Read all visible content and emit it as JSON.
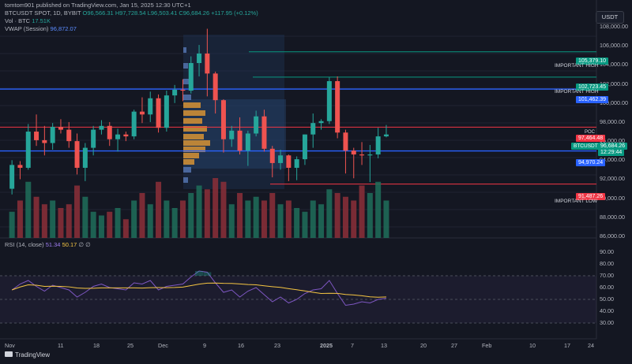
{
  "header": {
    "publisher": "tomtom901 published on TradingView.com, Jan 15, 2025 12:30 UTC+1",
    "symbol_line": "BTCUSDT SPOT, 1D, BYBIT",
    "open": "O96,566.31",
    "high": "H97,728.54",
    "low": "L96,503.41",
    "close": "C96,684.26",
    "change": "+117.95 (+0.12%)",
    "vol_label": "Vol · BTC",
    "vol_value": "17.51K",
    "vwap_label": "VWAP (Session)",
    "vwap_value": "96,872.07"
  },
  "currency_button": "USDT",
  "price_axis": [
    "108,000.00",
    "106,000.00",
    "104,000.00",
    "102,000.00",
    "100,000.00",
    "98,000.00",
    "96,000.00",
    "94,000.00",
    "92,000.00",
    "90,000.00",
    "88,000.00",
    "86,000.00"
  ],
  "price_tags": {
    "important_high_1": "105,379.10",
    "important_high_2": "102,723.45",
    "blue_upper": "101,462.39",
    "poc_red": "97,464.48",
    "symbol_tag": "BTCUSDT",
    "last_price": "96,684.26",
    "countdown": "12:29:44",
    "blue_lower": "94,970.24",
    "important_low": "91,487.26"
  },
  "annotations": {
    "important_high_a": "IMPORTANT HIGH",
    "important_high_b": "IMPORTANT HIGH",
    "poc": "POC",
    "important_low": "IMPORTANT LOW"
  },
  "rsi": {
    "label": "RSI (14, close)",
    "value": "51.34",
    "ma_value": "50.17",
    "symbols": "∅ ∅",
    "axis": [
      "90.00",
      "80.00",
      "70.00",
      "60.00",
      "50.00",
      "40.00",
      "30.00"
    ]
  },
  "time_axis": [
    "Nov",
    "11",
    "18",
    "25",
    "Dec",
    "9",
    "16",
    "23",
    "2025",
    "7",
    "13",
    "20",
    "27",
    "Feb",
    "10",
    "17",
    "24"
  ],
  "footer": {
    "brand": "TradingView"
  },
  "colors": {
    "up": "#26a69a",
    "down": "#ef5350",
    "blue_level": "#2962ff",
    "green_level": "#089981",
    "red_level": "#f23645",
    "rsi_line": "#7e57c2",
    "rsi_ma": "#f5c542"
  },
  "chart_data": {
    "type": "candlestick",
    "candles_ohlc": [
      [
        91000,
        94000,
        90400,
        93500
      ],
      [
        93500,
        93900,
        92000,
        93200
      ],
      [
        93200,
        97800,
        93000,
        97000
      ],
      [
        97000,
        98800,
        95500,
        96100
      ],
      [
        96100,
        97600,
        94500,
        95800
      ],
      [
        95800,
        97900,
        95100,
        97500
      ],
      [
        97500,
        98300,
        96800,
        97200
      ],
      [
        97200,
        98000,
        95300,
        96000
      ],
      [
        96000,
        96800,
        92500,
        93200
      ],
      [
        93200,
        95800,
        91800,
        95300
      ],
      [
        95300,
        97600,
        94500,
        97200
      ],
      [
        97200,
        98200,
        96700,
        97600
      ],
      [
        97600,
        98000,
        95500,
        96200
      ],
      [
        96200,
        97300,
        94900,
        96700
      ],
      [
        96700,
        97000,
        96000,
        96500
      ],
      [
        96500,
        99300,
        96200,
        99100
      ],
      [
        99100,
        100600,
        97900,
        98800
      ],
      [
        98800,
        101200,
        98000,
        100500
      ],
      [
        100500,
        100900,
        96900,
        97400
      ],
      [
        97400,
        101300,
        97000,
        100800
      ],
      [
        100800,
        101900,
        100000,
        101400
      ],
      [
        101400,
        102500,
        100200,
        101300
      ],
      [
        101300,
        104900,
        101000,
        104200
      ],
      [
        104200,
        106100,
        102800,
        105200
      ],
      [
        105200,
        107800,
        100700,
        103100
      ],
      [
        103100,
        103300,
        98900,
        100300
      ],
      [
        100300,
        100400,
        94800,
        96200
      ],
      [
        96200,
        97600,
        95400,
        97100
      ],
      [
        97100,
        98500,
        94600,
        95000
      ],
      [
        95000,
        97100,
        93400,
        96800
      ],
      [
        96800,
        99200,
        96500,
        98600
      ],
      [
        98600,
        99300,
        94900,
        95200
      ],
      [
        95200,
        95500,
        92200,
        93700
      ],
      [
        93700,
        95100,
        93000,
        94500
      ],
      [
        94500,
        94600,
        91800,
        93200
      ],
      [
        93200,
        94400,
        91900,
        94100
      ],
      [
        94100,
        96700,
        93500,
        96700
      ],
      [
        96700,
        98900,
        95300,
        97900
      ],
      [
        97900,
        98300,
        97200,
        98100
      ],
      [
        98100,
        102700,
        97800,
        102300
      ],
      [
        102300,
        102800,
        96300,
        96900
      ],
      [
        96900,
        97200,
        92600,
        95000
      ],
      [
        95000,
        95300,
        92100,
        94600
      ],
      [
        94600,
        95900,
        93500,
        94500
      ],
      [
        94500,
        95600,
        91700,
        94600
      ],
      [
        94600,
        97400,
        94200,
        96500
      ],
      [
        96500,
        97700,
        96400,
        96700
      ]
    ],
    "volume_relative": [
      0.35,
      0.5,
      0.75,
      0.55,
      0.45,
      0.5,
      0.4,
      0.45,
      0.7,
      0.55,
      0.35,
      0.3,
      0.35,
      0.4,
      0.25,
      0.5,
      0.6,
      0.45,
      0.75,
      0.5,
      0.4,
      0.5,
      0.6,
      0.7,
      0.65,
      0.8,
      0.75,
      0.45,
      0.6,
      0.5,
      0.55,
      0.5,
      0.6,
      0.45,
      0.5,
      0.4,
      0.35,
      0.5,
      0.45,
      0.65,
      0.6,
      0.55,
      0.5,
      0.7,
      0.6,
      0.75,
      0.5
    ],
    "rsi_values": [
      58,
      63,
      66,
      61,
      57,
      62,
      60,
      58,
      52,
      56,
      61,
      63,
      60,
      59,
      58,
      64,
      63,
      66,
      58,
      61,
      62,
      63,
      69,
      74,
      73,
      64,
      56,
      58,
      52,
      57,
      60,
      54,
      48,
      52,
      47,
      50,
      55,
      58,
      59,
      66,
      55,
      45,
      46,
      48,
      47,
      50,
      51
    ],
    "levels": [
      105379.1,
      102723.45,
      101462.39,
      97464.48,
      94970.24,
      91487.26
    ],
    "ylim": [
      86000,
      109000
    ]
  }
}
